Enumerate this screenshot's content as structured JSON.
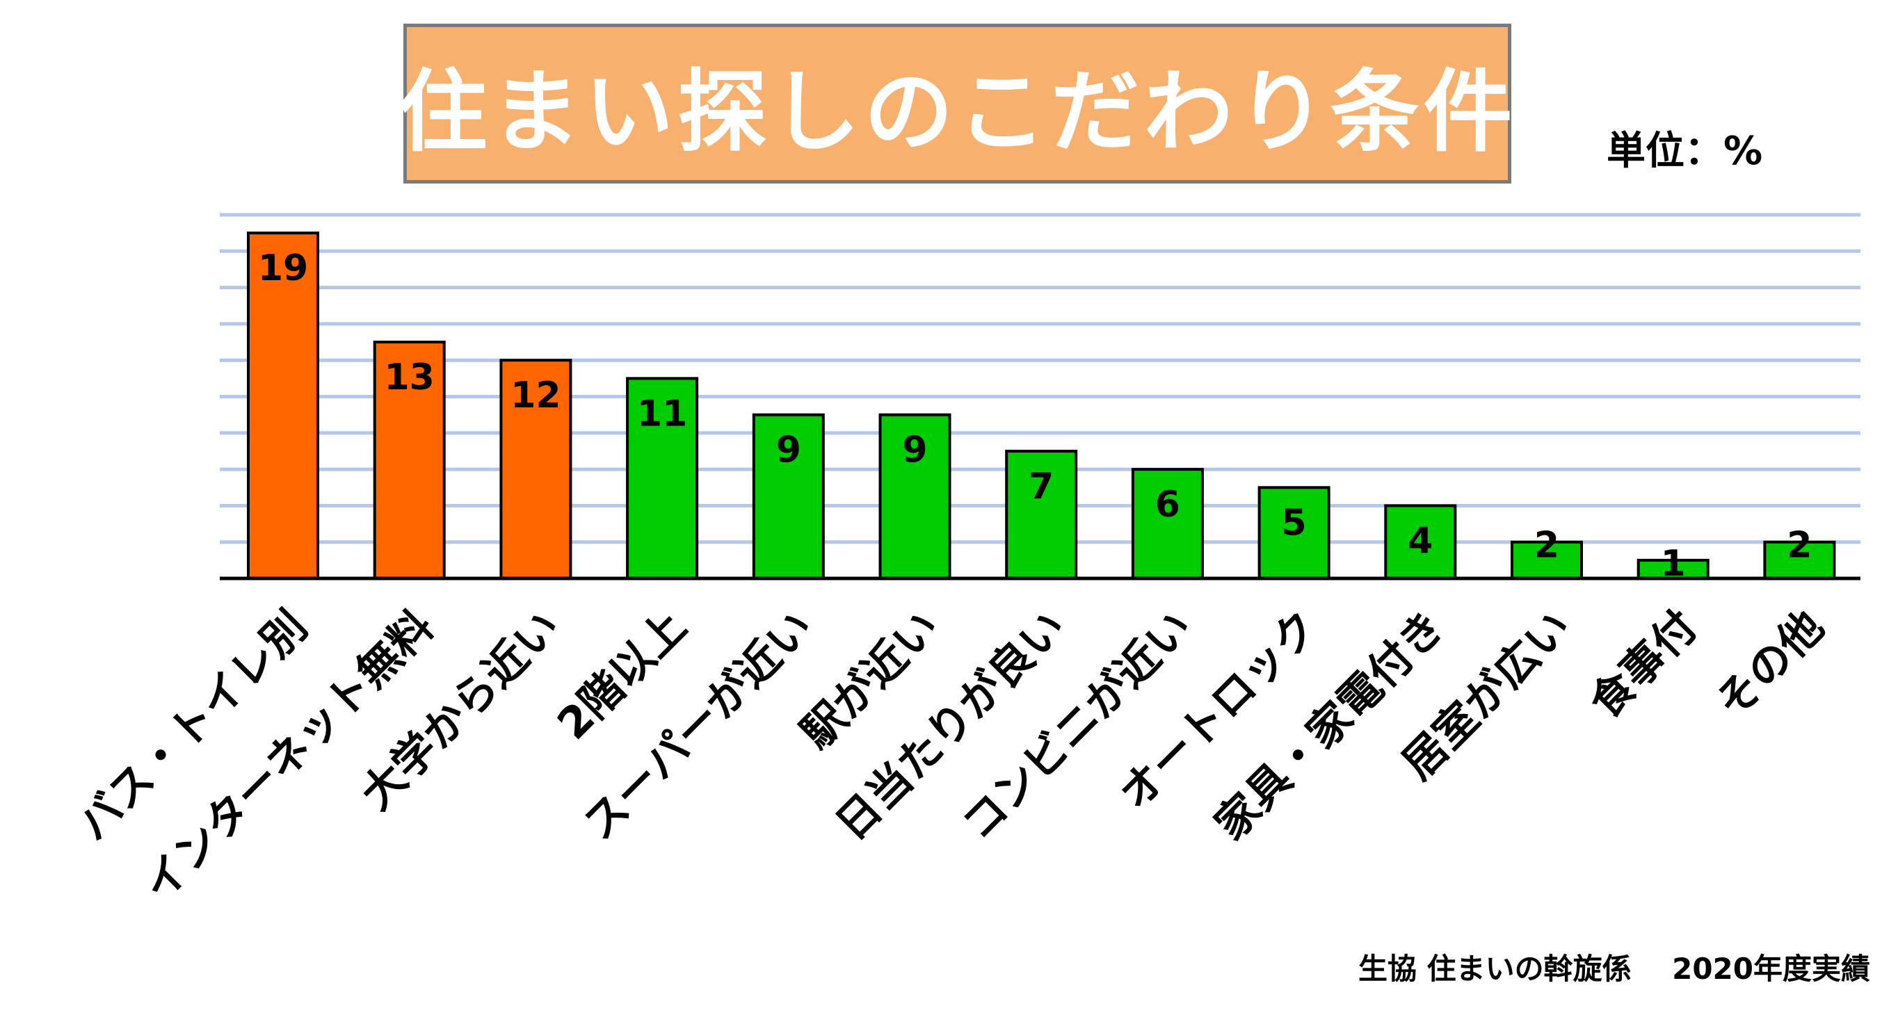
{
  "title": "住まい探しのこだわり条件",
  "unit_label": "単位：%",
  "source_org": "生協 住まいの斡旋係",
  "source_year": "2020年度実績",
  "colors": {
    "orange": "#ff6600",
    "green": "#00cc00",
    "title_bg": "#f7b06e",
    "grid": "#b4c7e7",
    "axis": "#000000"
  },
  "chart_data": {
    "type": "bar",
    "categories": [
      "バス・トイレ別",
      "インターネット無料",
      "大学から近い",
      "2階以上",
      "スーパーが近い",
      "駅が近い",
      "日当たりが良い",
      "コンビニが近い",
      "オートロック",
      "家具・家電付き",
      "居室が広い",
      "食事付",
      "その他"
    ],
    "values": [
      19,
      13,
      12,
      11,
      9,
      9,
      7,
      6,
      5,
      4,
      2,
      1,
      2
    ],
    "bar_colors": [
      "orange",
      "orange",
      "orange",
      "green",
      "green",
      "green",
      "green",
      "green",
      "green",
      "green",
      "green",
      "green",
      "green"
    ],
    "ylim": [
      0,
      20
    ],
    "grid": true,
    "data_labels": true
  }
}
